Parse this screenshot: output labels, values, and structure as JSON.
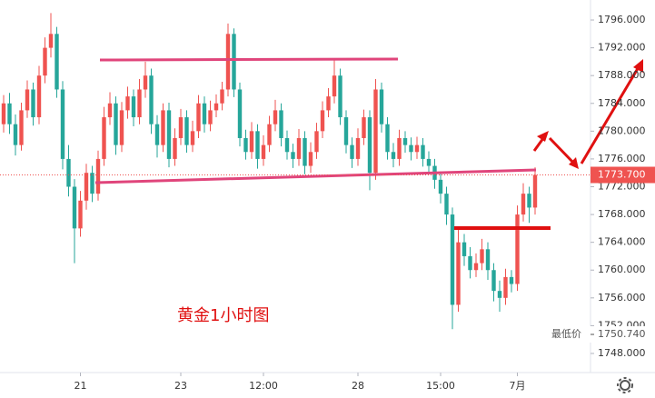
{
  "chart_data": {
    "type": "candlestick",
    "open": [
      1781,
      1784,
      1781,
      1778,
      1783,
      1786,
      1782,
      1788,
      1792,
      1794,
      1786,
      1776,
      1772,
      1766,
      1770,
      1774,
      1771,
      1776,
      1782,
      1784,
      1778,
      1783,
      1785,
      1782,
      1786,
      1788,
      1781,
      1778,
      1783,
      1776,
      1779,
      1782,
      1778,
      1780,
      1784,
      1781,
      1783,
      1784,
      1786,
      1794,
      1786,
      1779,
      1777,
      1780,
      1776,
      1778,
      1781,
      1783,
      1779,
      1777,
      1776,
      1779,
      1775,
      1777,
      1780,
      1783,
      1785,
      1788,
      1782,
      1778,
      1776,
      1779,
      1782,
      1774,
      1786,
      1781,
      1777,
      1776,
      1779,
      1778,
      1777,
      1778,
      1776,
      1775,
      1773,
      1771,
      1768,
      1755,
      1764,
      1762,
      1760,
      1761,
      1763,
      1760,
      1757,
      1756,
      1759,
      1758,
      1768,
      1771,
      1769
    ],
    "high": [
      1785.2,
      1785.5,
      1782.4,
      1784.1,
      1787.3,
      1787,
      1789.4,
      1793.5,
      1797,
      1795,
      1787.2,
      1778,
      1773.1,
      1771.4,
      1775.3,
      1775,
      1777.2,
      1783.5,
      1785.6,
      1785,
      1784.2,
      1786.4,
      1786,
      1787.5,
      1790,
      1789,
      1782.3,
      1784,
      1784.1,
      1780.4,
      1783.2,
      1783,
      1781.5,
      1785.2,
      1785,
      1784.4,
      1785.3,
      1787.1,
      1795.5,
      1794.8,
      1787,
      1780.2,
      1781.3,
      1781,
      1779.4,
      1782.2,
      1784.5,
      1784,
      1780.1,
      1778.2,
      1780.3,
      1780,
      1778.4,
      1781.2,
      1784.3,
      1786.2,
      1790.5,
      1789,
      1783,
      1779.1,
      1780.4,
      1783.1,
      1783,
      1787.5,
      1787,
      1782,
      1778.3,
      1780.2,
      1780,
      1779.1,
      1779.2,
      1779,
      1777.1,
      1776,
      1774.2,
      1772,
      1769,
      1766,
      1765.2,
      1763.3,
      1762.4,
      1764.5,
      1764,
      1761,
      1758.5,
      1760.2,
      1760,
      1769.3,
      1772.5,
      1772,
      1774.8
    ],
    "low": [
      1779.8,
      1779.6,
      1776.5,
      1777.2,
      1781.9,
      1780.8,
      1781,
      1786.9,
      1790.6,
      1784.8,
      1774.5,
      1770.6,
      1761,
      1764.8,
      1768.7,
      1769.8,
      1770,
      1775,
      1780.9,
      1776.6,
      1777,
      1781.8,
      1780.7,
      1781,
      1784.8,
      1779.6,
      1776.2,
      1777,
      1774.8,
      1775,
      1778,
      1776.9,
      1777,
      1779,
      1779.8,
      1780,
      1782,
      1783,
      1785,
      1784.9,
      1777.8,
      1775.9,
      1776,
      1774.6,
      1775,
      1777,
      1780,
      1777.8,
      1775.9,
      1774.7,
      1775,
      1773.8,
      1774,
      1776,
      1779,
      1782,
      1784,
      1780.9,
      1776.8,
      1774.7,
      1775,
      1778,
      1771.5,
      1773,
      1779.8,
      1775.9,
      1774.8,
      1775,
      1776.9,
      1775.8,
      1776,
      1774.9,
      1773.8,
      1771.7,
      1769.6,
      1766.5,
      1751.5,
      1754,
      1760.6,
      1758.8,
      1759,
      1760,
      1758.6,
      1755.5,
      1754,
      1755,
      1756.8,
      1757,
      1767,
      1766.8,
      1768
    ],
    "close": [
      1784,
      1781,
      1778,
      1783,
      1786,
      1782,
      1788,
      1792,
      1794,
      1786,
      1776,
      1772,
      1766,
      1770,
      1774,
      1771,
      1776,
      1782,
      1784,
      1778,
      1783,
      1785,
      1782,
      1786,
      1788,
      1781,
      1778,
      1783,
      1776,
      1779,
      1782,
      1778,
      1780,
      1784,
      1781,
      1783,
      1784,
      1786,
      1794,
      1786,
      1779,
      1777,
      1780,
      1776,
      1778,
      1781,
      1783,
      1779,
      1777,
      1776,
      1779,
      1775,
      1777,
      1780,
      1783,
      1785,
      1788,
      1782,
      1778,
      1776,
      1779,
      1782,
      1774,
      1786,
      1781,
      1777,
      1776,
      1779,
      1778,
      1777,
      1778,
      1776,
      1775,
      1773,
      1771,
      1768,
      1755,
      1764,
      1762,
      1760,
      1761,
      1763,
      1760,
      1757,
      1756,
      1759,
      1758,
      1768,
      1771,
      1769,
      1773.7
    ],
    "up_color": "#ef5350",
    "down_color": "#26a69a",
    "ylim": [
      1745.25,
      1798.88
    ],
    "yticks": [
      {
        "value": 1748,
        "label": "1748.000"
      },
      {
        "value": 1752,
        "label": "1752.000"
      },
      {
        "value": 1756,
        "label": "1756.000"
      },
      {
        "value": 1760,
        "label": "1760.000"
      },
      {
        "value": 1764,
        "label": "1764.000"
      },
      {
        "value": 1768,
        "label": "1768.000"
      },
      {
        "value": 1772,
        "label": "1772.000"
      },
      {
        "value": 1776,
        "label": "1776.000"
      },
      {
        "value": 1780,
        "label": "1780.000"
      },
      {
        "value": 1784,
        "label": "1784.000"
      },
      {
        "value": 1788,
        "label": "1788.000"
      },
      {
        "value": 1792,
        "label": "1792.000"
      },
      {
        "value": 1796,
        "label": "1796.000"
      }
    ],
    "xticks": [
      {
        "value": 13,
        "label": "21"
      },
      {
        "value": 30,
        "label": "23"
      },
      {
        "value": 44,
        "label": "12:00"
      },
      {
        "value": 60,
        "label": "28"
      },
      {
        "value": 74,
        "label": "15:00"
      },
      {
        "value": 87,
        "label": "7月"
      }
    ],
    "last_price": {
      "value": 1773.7,
      "label": "1773.700"
    },
    "low_title": "最低价",
    "low_price": {
      "value": 1750.74,
      "label": "1750.740"
    },
    "annotation": "黄金1小时图"
  }
}
